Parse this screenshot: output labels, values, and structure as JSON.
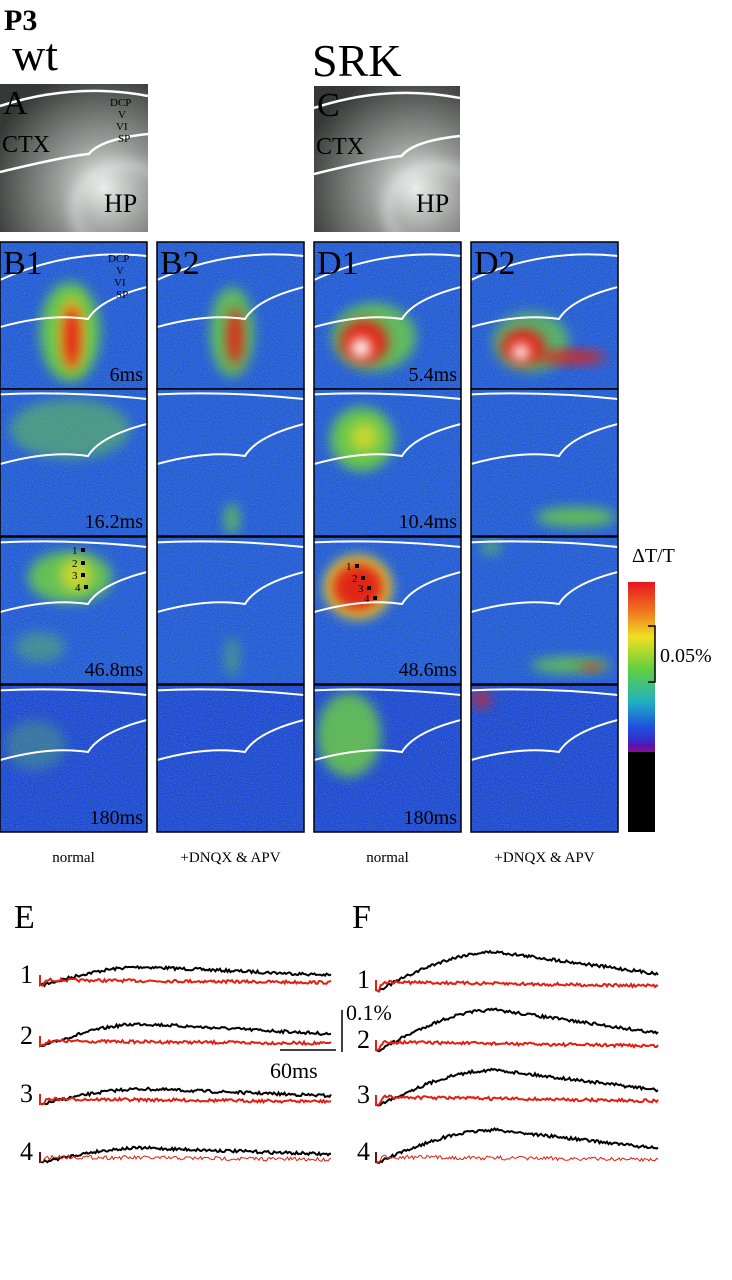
{
  "age": "P3",
  "groups": [
    "wt",
    "SRK"
  ],
  "panel_a": {
    "label": "A",
    "layers": [
      "DCP",
      "V",
      "VI",
      "SP"
    ],
    "regions": [
      "CTX",
      "HP"
    ]
  },
  "panel_c": {
    "label": "C",
    "regions": [
      "CTX",
      "HP"
    ]
  },
  "columns": [
    {
      "label": "B1",
      "condition": "normal",
      "times": [
        "6ms",
        "16.2ms",
        "46.8ms",
        "180ms"
      ],
      "rois": [
        "1",
        "2",
        "3",
        "4"
      ],
      "layers": [
        "DCP",
        "V",
        "VI",
        "SP"
      ]
    },
    {
      "label": "B2",
      "condition": "+DNQX & APV"
    },
    {
      "label": "D1",
      "condition": "normal",
      "times": [
        "5.4ms",
        "10.4ms",
        "48.6ms",
        "180ms"
      ],
      "rois": [
        "1",
        "2",
        "3",
        "4"
      ]
    },
    {
      "label": "D2",
      "condition": "+DNQX & APV"
    }
  ],
  "colorbar": {
    "title": "ΔT/T",
    "scale": "0.05%"
  },
  "traces": [
    {
      "label": "E",
      "rows": [
        "1",
        "2",
        "3",
        "4"
      ]
    },
    {
      "label": "F",
      "rows": [
        "1",
        "2",
        "3",
        "4"
      ]
    }
  ],
  "scale_bar": {
    "amplitude": "0.1%",
    "time": "60ms"
  }
}
